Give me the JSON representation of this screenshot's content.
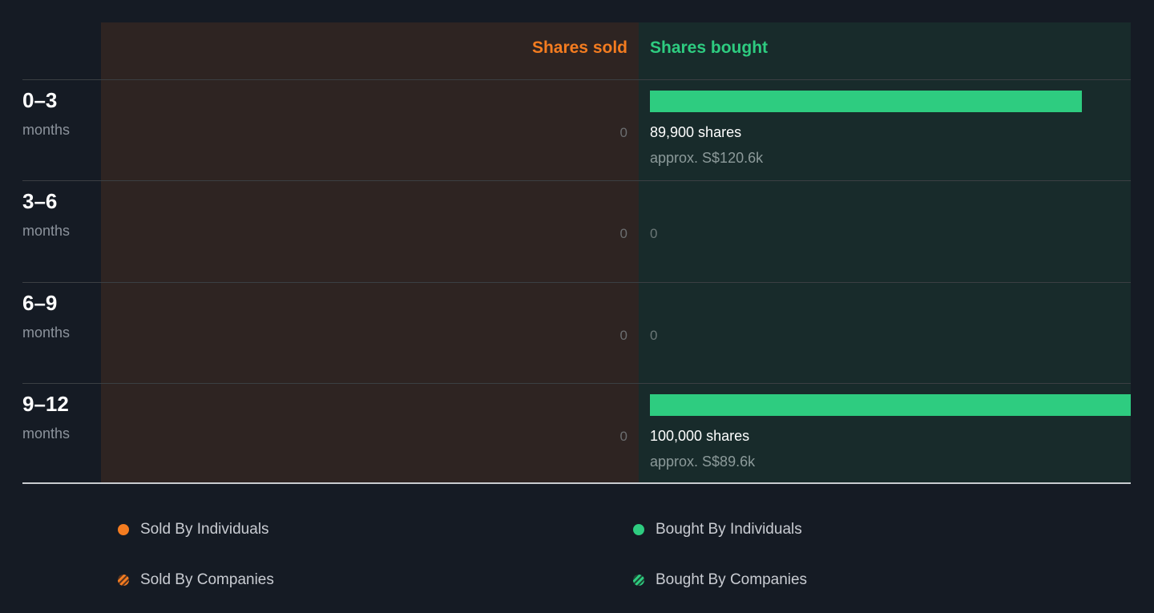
{
  "chart_data": {
    "type": "bar",
    "headers": {
      "sold": "Shares sold",
      "bought": "Shares bought"
    },
    "categories": [
      {
        "period": "0–3",
        "unit": "months"
      },
      {
        "period": "3–6",
        "unit": "months"
      },
      {
        "period": "6–9",
        "unit": "months"
      },
      {
        "period": "9–12",
        "unit": "months"
      }
    ],
    "sold": [
      {
        "value": 0,
        "label": "0"
      },
      {
        "value": 0,
        "label": "0"
      },
      {
        "value": 0,
        "label": "0"
      },
      {
        "value": 0,
        "label": "0"
      }
    ],
    "bought": [
      {
        "value": 89900,
        "label": "89,900 shares",
        "approx": "approx. S$120.6k"
      },
      {
        "value": 0,
        "label": "0"
      },
      {
        "value": 0,
        "label": "0"
      },
      {
        "value": 100000,
        "label": "100,000 shares",
        "approx": "approx. S$89.6k"
      }
    ],
    "legend": [
      {
        "label": "Sold By Individuals",
        "color": "#f47c20",
        "pattern": "solid"
      },
      {
        "label": "Bought By Individuals",
        "color": "#2ecc80",
        "pattern": "solid"
      },
      {
        "label": "Sold By Companies",
        "color": "#f47c20",
        "pattern": "striped"
      },
      {
        "label": "Bought By Companies",
        "color": "#2ecc80",
        "pattern": "striped"
      }
    ]
  }
}
